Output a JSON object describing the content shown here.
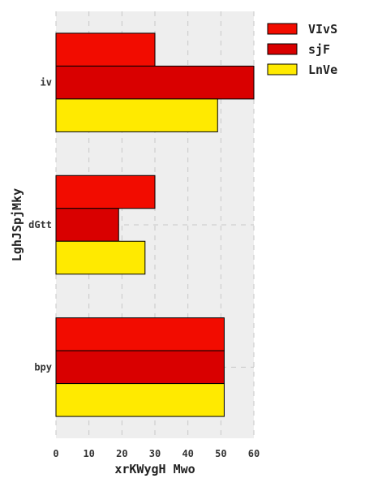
{
  "chart_data": {
    "type": "bar",
    "orientation": "horizontal",
    "categories": [
      "iv",
      "dGtt",
      "bpy"
    ],
    "series": [
      {
        "name": "VIvS",
        "values": [
          30,
          30,
          51
        ],
        "color": "#f20c00"
      },
      {
        "name": "sjF",
        "values": [
          60,
          19,
          51
        ],
        "color": "#d90000"
      },
      {
        "name": "LnVe",
        "values": [
          49,
          27,
          51
        ],
        "color": "#ffea00"
      }
    ],
    "xlabel": "xrKWygH Mwo",
    "ylabel": "LghJSpjMky",
    "xlim": [
      0,
      60
    ],
    "xticks": [
      0,
      10,
      20,
      30,
      40,
      50,
      60
    ],
    "grid": true,
    "grid_style": "dashed",
    "legend_position": "right",
    "colors": {
      "background": "#eeeeee",
      "grid": "#c8c8c8",
      "bar_edge": "#000000"
    }
  }
}
